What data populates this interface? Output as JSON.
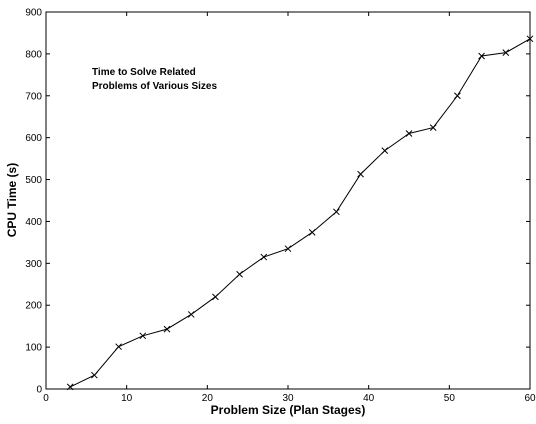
{
  "chart_data": {
    "type": "line",
    "xlabel": "Problem Size (Plan Stages)",
    "ylabel": "CPU Time (s)",
    "annotation": [
      "Time to Solve Related",
      "Problems of Various Sizes"
    ],
    "xlim": [
      0,
      60
    ],
    "ylim": [
      0,
      900
    ],
    "xticks": [
      0,
      10,
      20,
      30,
      40,
      50,
      60
    ],
    "yticks": [
      0,
      100,
      200,
      300,
      400,
      500,
      600,
      700,
      800,
      900
    ],
    "grid": false,
    "marker": "x",
    "line_color": "#000000",
    "series": [
      {
        "x": [
          3,
          6,
          9,
          12,
          15,
          18,
          21,
          24,
          27,
          30,
          33,
          36,
          39,
          42,
          45,
          48,
          51,
          54,
          57,
          60
        ],
        "values": [
          5,
          33,
          101,
          127,
          143,
          178,
          220,
          274,
          315,
          335,
          374,
          423,
          513,
          569,
          610,
          624,
          700,
          795,
          803,
          836
        ]
      }
    ]
  }
}
